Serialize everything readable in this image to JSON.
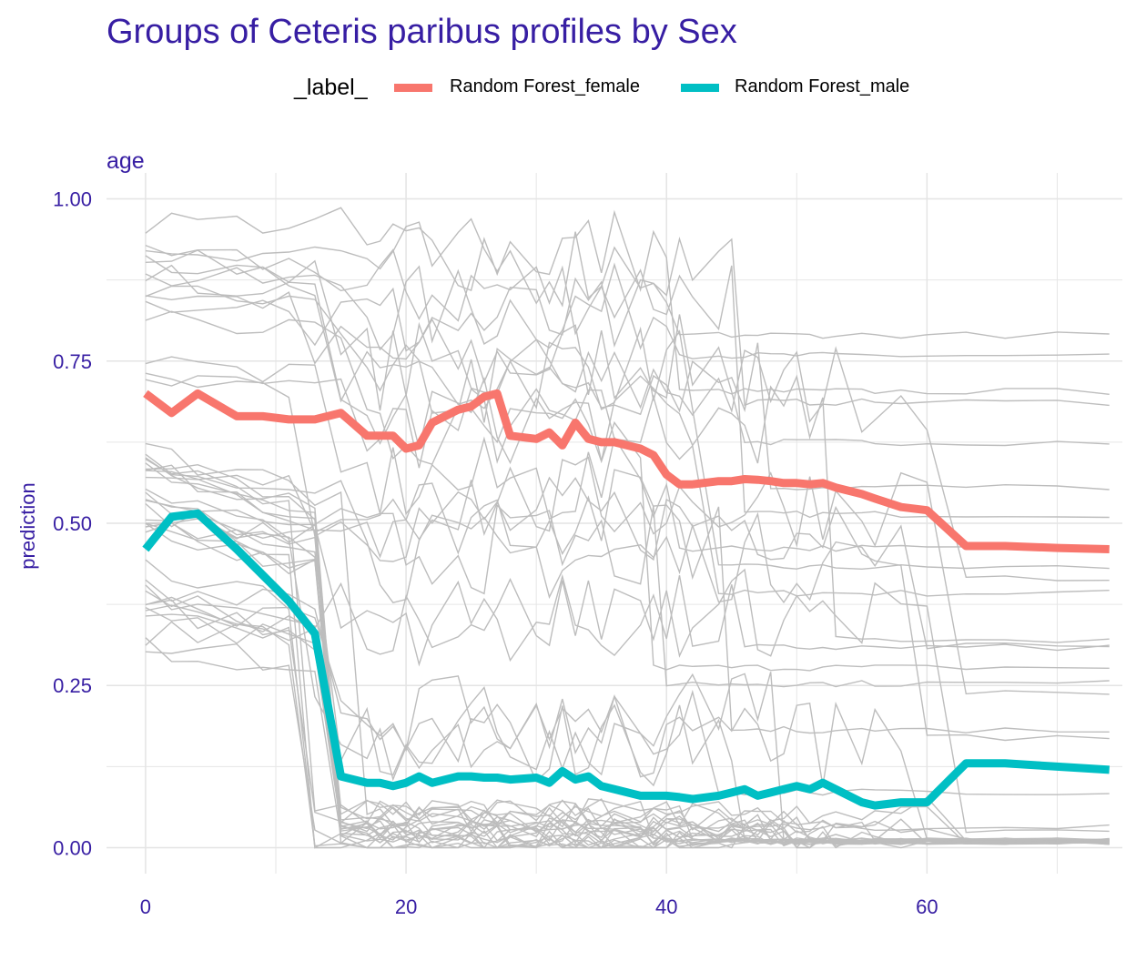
{
  "title": "Groups of Ceteris paribus profiles by Sex",
  "legend": {
    "title": "_label_",
    "items": [
      {
        "label": "Random Forest_female",
        "color": "#F8766D"
      },
      {
        "label": "Random Forest_male",
        "color": "#00BFC4"
      }
    ]
  },
  "facet_label": "age",
  "colors": {
    "text": "#371ea3",
    "grid": "#e6e6e6",
    "profiles": "#bdbdbd"
  },
  "chart_data": {
    "type": "line",
    "title": "Groups of Ceteris paribus profiles by Sex",
    "facet": "age",
    "xlabel": "",
    "ylabel": "prediction",
    "xlim": [
      -3,
      75
    ],
    "ylim": [
      -0.04,
      1.04
    ],
    "xticks": [
      0,
      20,
      40,
      60
    ],
    "yticks": [
      0.0,
      0.25,
      0.5,
      0.75,
      1.0
    ],
    "ytick_labels": [
      "0.00",
      "0.25",
      "0.50",
      "0.75",
      "1.00"
    ],
    "grid": true,
    "legend_position": "top",
    "x": [
      0,
      2,
      4,
      7,
      9,
      11,
      13,
      15,
      17,
      18,
      19,
      20,
      21,
      22,
      24,
      25,
      26,
      27,
      28,
      30,
      31,
      32,
      33,
      34,
      35,
      36,
      38,
      39,
      40,
      41,
      42,
      44,
      45,
      46,
      47,
      48,
      49,
      50,
      51,
      52,
      53,
      55,
      56,
      58,
      60,
      63,
      66,
      70,
      74
    ],
    "series": [
      {
        "name": "Random Forest_female",
        "color": "#F8766D",
        "values": [
          0.7,
          0.67,
          0.7,
          0.665,
          0.665,
          0.66,
          0.66,
          0.67,
          0.635,
          0.635,
          0.635,
          0.615,
          0.62,
          0.655,
          0.675,
          0.68,
          0.695,
          0.7,
          0.635,
          0.63,
          0.64,
          0.62,
          0.655,
          0.63,
          0.625,
          0.625,
          0.615,
          0.605,
          0.575,
          0.56,
          0.56,
          0.565,
          0.565,
          0.568,
          0.567,
          0.565,
          0.562,
          0.562,
          0.56,
          0.562,
          0.555,
          0.545,
          0.538,
          0.525,
          0.52,
          0.465,
          0.465,
          0.462,
          0.46
        ]
      },
      {
        "name": "Random Forest_male",
        "color": "#00BFC4",
        "values": [
          0.46,
          0.51,
          0.515,
          0.46,
          0.42,
          0.38,
          0.33,
          0.11,
          0.1,
          0.1,
          0.095,
          0.1,
          0.11,
          0.1,
          0.11,
          0.11,
          0.108,
          0.108,
          0.105,
          0.108,
          0.1,
          0.118,
          0.105,
          0.11,
          0.095,
          0.09,
          0.08,
          0.08,
          0.08,
          0.078,
          0.075,
          0.08,
          0.085,
          0.09,
          0.08,
          0.085,
          0.09,
          0.095,
          0.09,
          0.1,
          0.09,
          0.07,
          0.065,
          0.07,
          0.07,
          0.13,
          0.13,
          0.125,
          0.12
        ]
      }
    ]
  }
}
